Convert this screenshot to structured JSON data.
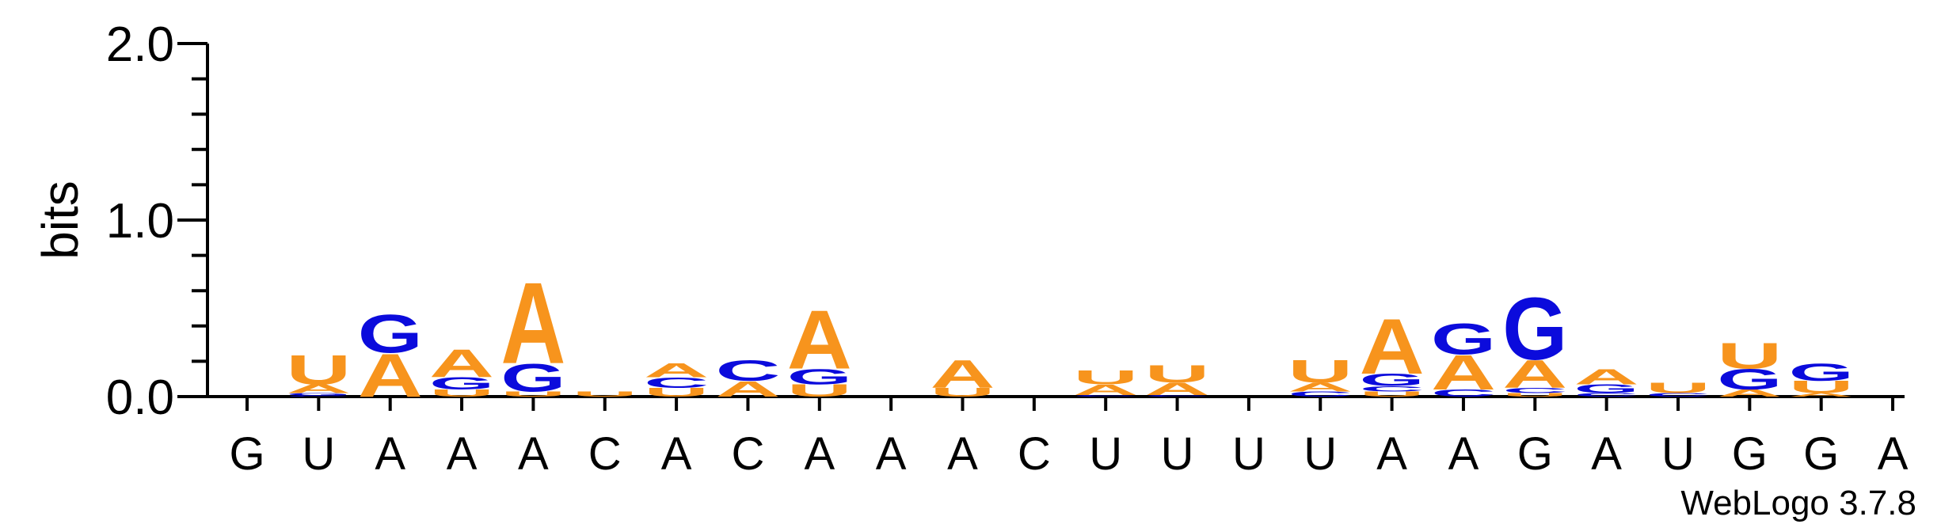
{
  "chart_data": {
    "type": "sequence-logo",
    "ylabel": "bits",
    "ylim": [
      0,
      2.0
    ],
    "yticks": [
      {
        "value": 0.0,
        "label": "0.0"
      },
      {
        "value": 1.0,
        "label": "1.0"
      },
      {
        "value": 2.0,
        "label": "2.0"
      }
    ],
    "minor_tick_step": 0.2,
    "colors": {
      "A": "#f7941d",
      "U": "#f7941d",
      "G": "#0b0bdc",
      "C": "#0b0bdc"
    },
    "consensus": [
      "G",
      "U",
      "A",
      "A",
      "A",
      "C",
      "A",
      "C",
      "A",
      "A",
      "A",
      "C",
      "U",
      "U",
      "U",
      "U",
      "A",
      "A",
      "G",
      "A",
      "U",
      "G",
      "G",
      "A"
    ],
    "positions": [
      [],
      [
        {
          "b": "C",
          "h": 0.006
        },
        {
          "b": "G",
          "h": 0.014
        },
        {
          "b": "A",
          "h": 0.05
        },
        {
          "b": "U",
          "h": 0.17
        }
      ],
      [
        {
          "b": "A",
          "h": 0.25
        },
        {
          "b": "G",
          "h": 0.22
        }
      ],
      [
        {
          "b": "U",
          "h": 0.04
        },
        {
          "b": "G",
          "h": 0.07
        },
        {
          "b": "A",
          "h": 0.16
        }
      ],
      [
        {
          "b": "U",
          "h": 0.03
        },
        {
          "b": "G",
          "h": 0.16
        },
        {
          "b": "A",
          "h": 0.47
        }
      ],
      [
        {
          "b": "U",
          "h": 0.03
        }
      ],
      [
        {
          "b": "U",
          "h": 0.05
        },
        {
          "b": "C",
          "h": 0.06
        },
        {
          "b": "A",
          "h": 0.08
        }
      ],
      [
        {
          "b": "A",
          "h": 0.09
        },
        {
          "b": "C",
          "h": 0.12
        }
      ],
      [
        {
          "b": "U",
          "h": 0.07
        },
        {
          "b": "G",
          "h": 0.09
        },
        {
          "b": "A",
          "h": 0.34
        }
      ],
      [],
      [
        {
          "b": "U",
          "h": 0.05
        },
        {
          "b": "A",
          "h": 0.16
        }
      ],
      [],
      [
        {
          "b": "C",
          "h": 0.01
        },
        {
          "b": "A",
          "h": 0.06
        },
        {
          "b": "U",
          "h": 0.08
        }
      ],
      [
        {
          "b": "C",
          "h": 0.01
        },
        {
          "b": "A",
          "h": 0.07
        },
        {
          "b": "U",
          "h": 0.1
        }
      ],
      [],
      [
        {
          "b": "C",
          "h": 0.03
        },
        {
          "b": "A",
          "h": 0.05
        },
        {
          "b": "U",
          "h": 0.13
        }
      ],
      [
        {
          "b": "U",
          "h": 0.03
        },
        {
          "b": "C",
          "h": 0.03
        },
        {
          "b": "G",
          "h": 0.07
        },
        {
          "b": "A",
          "h": 0.32
        }
      ],
      [
        {
          "b": "C",
          "h": 0.04
        },
        {
          "b": "A",
          "h": 0.2
        },
        {
          "b": "G",
          "h": 0.18
        }
      ],
      [
        {
          "b": "U",
          "h": 0.02
        },
        {
          "b": "C",
          "h": 0.03
        },
        {
          "b": "A",
          "h": 0.16
        },
        {
          "b": "G",
          "h": 0.36
        }
      ],
      [
        {
          "b": "C",
          "h": 0.02
        },
        {
          "b": "G",
          "h": 0.05
        },
        {
          "b": "A",
          "h": 0.09
        }
      ],
      [
        {
          "b": "C",
          "h": 0.02
        },
        {
          "b": "U",
          "h": 0.06
        }
      ],
      [
        {
          "b": "A",
          "h": 0.04
        },
        {
          "b": "G",
          "h": 0.12
        },
        {
          "b": "U",
          "h": 0.15
        }
      ],
      [
        {
          "b": "A",
          "h": 0.02
        },
        {
          "b": "U",
          "h": 0.07
        },
        {
          "b": "G",
          "h": 0.1
        }
      ],
      []
    ]
  },
  "credit": "WebLogo 3.7.8"
}
